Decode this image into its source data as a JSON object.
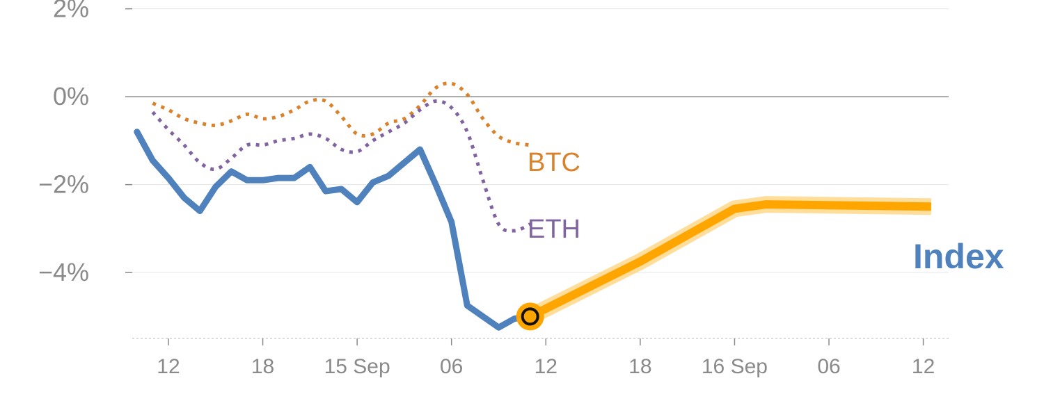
{
  "colors": {
    "index": "#4f81bd",
    "btc": "#d9822b",
    "eth": "#8064a2",
    "projection": "#ffa500",
    "projection_glow": "#ffd27a",
    "grid": "#e6e6e6",
    "zero_line": "#8c8c8c",
    "tick": "#8a8a8a"
  },
  "chart_data": {
    "type": "line",
    "ylim": [
      -5.5,
      2.2
    ],
    "xlim": [
      -1.3,
      50.7
    ],
    "y_ticks": [
      {
        "value": 2,
        "label": "2%"
      },
      {
        "value": 0,
        "label": "0%"
      },
      {
        "value": -2,
        "label": "−2%"
      },
      {
        "value": -4,
        "label": "−4%"
      }
    ],
    "x_ticks": [
      {
        "value": 1,
        "label": "12"
      },
      {
        "value": 7,
        "label": "18"
      },
      {
        "value": 13,
        "label": "15 Sep"
      },
      {
        "value": 19,
        "label": "06"
      },
      {
        "value": 25,
        "label": "12"
      },
      {
        "value": 31,
        "label": "18"
      },
      {
        "value": 37,
        "label": "16 Sep"
      },
      {
        "value": 43,
        "label": "06"
      },
      {
        "value": 49,
        "label": "12"
      }
    ],
    "series": [
      {
        "key": "btc",
        "name": "BTC",
        "style": "dotted",
        "x": [
          0,
          1,
          2,
          3,
          4,
          5,
          6,
          7,
          8,
          9,
          10,
          11,
          12,
          13,
          14,
          15,
          16,
          17,
          18,
          19,
          20,
          21,
          22,
          23,
          24
        ],
        "y": [
          -0.15,
          -0.3,
          -0.5,
          -0.6,
          -0.65,
          -0.55,
          -0.4,
          -0.5,
          -0.45,
          -0.3,
          -0.1,
          -0.1,
          -0.45,
          -0.85,
          -0.85,
          -0.6,
          -0.5,
          -0.2,
          0.2,
          0.3,
          0.05,
          -0.5,
          -0.9,
          -1.05,
          -1.1
        ]
      },
      {
        "key": "eth",
        "name": "ETH",
        "style": "dotted",
        "x": [
          0,
          1,
          2,
          3,
          4,
          5,
          6,
          7,
          8,
          9,
          10,
          11,
          12,
          13,
          14,
          15,
          16,
          17,
          18,
          19,
          20,
          21,
          22,
          23,
          24
        ],
        "y": [
          -0.35,
          -0.75,
          -1.1,
          -1.5,
          -1.65,
          -1.4,
          -1.1,
          -1.1,
          -1.0,
          -0.95,
          -0.85,
          -0.95,
          -1.2,
          -1.25,
          -1.0,
          -0.8,
          -0.6,
          -0.3,
          -0.1,
          -0.25,
          -0.8,
          -1.9,
          -2.9,
          -3.05,
          -2.9
        ]
      },
      {
        "key": "index",
        "name": "Index",
        "style": "solid",
        "x": [
          -1,
          0,
          1,
          2,
          3,
          4,
          5,
          6,
          7,
          8,
          9,
          10,
          11,
          12,
          13,
          14,
          15,
          16,
          17,
          18,
          19,
          20,
          21,
          22,
          23,
          24
        ],
        "y": [
          -0.8,
          -1.45,
          -1.85,
          -2.3,
          -2.6,
          -2.05,
          -1.7,
          -1.9,
          -1.9,
          -1.85,
          -1.85,
          -1.6,
          -2.15,
          -2.1,
          -2.4,
          -1.95,
          -1.8,
          -1.5,
          -1.2,
          -2.0,
          -2.85,
          -4.75,
          -5.0,
          -5.25,
          -5.05,
          -5.0
        ]
      }
    ],
    "projection": {
      "x": [
        24,
        31,
        37,
        39,
        49.5
      ],
      "y": [
        -5.0,
        -3.75,
        -2.55,
        -2.45,
        -2.5
      ]
    },
    "marker": {
      "x": 24,
      "y": -5.0
    },
    "labels": {
      "btc": "BTC",
      "eth": "ETH",
      "index": "Index"
    }
  }
}
